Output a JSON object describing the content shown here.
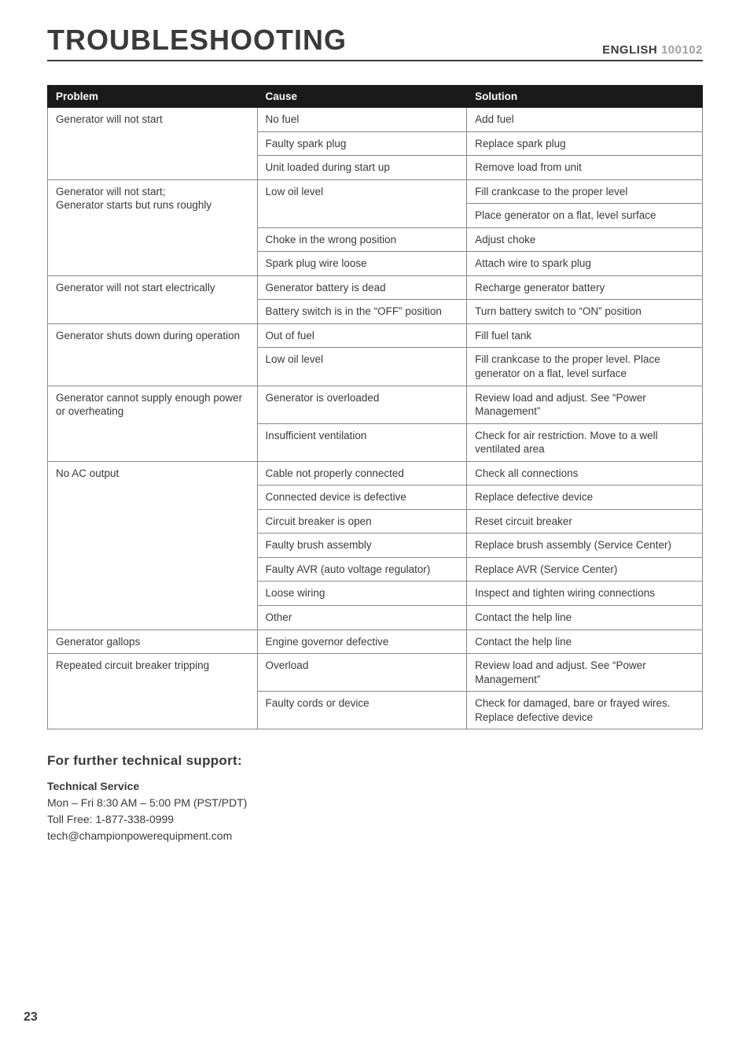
{
  "header": {
    "language": "ENGLISH",
    "model": "100102",
    "title": "TROUBLESHOOTING"
  },
  "table": {
    "columns": [
      "Problem",
      "Cause",
      "Solution"
    ],
    "column_widths_pct": [
      32,
      32,
      36
    ],
    "header_bg": "#1a1a1a",
    "header_fg": "#ffffff",
    "border_color": "#888888",
    "font_size_pt": 10,
    "rows": [
      {
        "problem": "Generator will not start",
        "problem_rowspan": 3,
        "cause": "No fuel",
        "solution": "Add fuel"
      },
      {
        "cause": "Faulty spark plug",
        "solution": "Replace spark plug"
      },
      {
        "cause": "Unit loaded during start up",
        "solution": "Remove load from unit"
      },
      {
        "problem": "Generator will not start;\nGenerator starts but runs roughly",
        "problem_rowspan": 4,
        "cause": "Low oil level",
        "cause_rowspan": 2,
        "solution": "Fill crankcase to the proper level"
      },
      {
        "solution": "Place generator on a flat, level surface"
      },
      {
        "cause": "Choke in the wrong position",
        "solution": "Adjust choke"
      },
      {
        "cause": "Spark plug wire loose",
        "solution": "Attach wire to spark plug"
      },
      {
        "problem": "Generator will not start electrically",
        "problem_rowspan": 2,
        "cause": "Generator battery is dead",
        "solution": "Recharge generator battery"
      },
      {
        "cause": "Battery switch is in the “OFF” position",
        "solution": "Turn battery switch to “ON” position"
      },
      {
        "problem": "Generator shuts down during operation",
        "problem_rowspan": 2,
        "cause": "Out of fuel",
        "solution": "Fill fuel tank"
      },
      {
        "cause": "Low oil level",
        "solution": "Fill crankcase to the proper level. Place generator on a flat, level surface"
      },
      {
        "problem": "Generator cannot supply enough power or overheating",
        "problem_rowspan": 2,
        "cause": "Generator is overloaded",
        "solution": "Review load and adjust. See “Power Management”"
      },
      {
        "cause": "Insufficient ventilation",
        "solution": "Check for air restriction. Move to a well ventilated area"
      },
      {
        "problem": "No AC output",
        "problem_rowspan": 7,
        "cause": "Cable not properly connected",
        "solution": "Check all connections"
      },
      {
        "cause": "Connected device is defective",
        "solution": "Replace defective device"
      },
      {
        "cause": "Circuit breaker is open",
        "solution": "Reset circuit breaker"
      },
      {
        "cause": "Faulty brush assembly",
        "solution": "Replace brush assembly (Service Center)"
      },
      {
        "cause": "Faulty AVR (auto voltage regulator)",
        "solution": "Replace AVR (Service Center)"
      },
      {
        "cause": "Loose wiring",
        "solution": "Inspect and tighten wiring connections"
      },
      {
        "cause": "Other",
        "solution": "Contact the help line"
      },
      {
        "problem": "Generator gallops",
        "problem_rowspan": 1,
        "cause": "Engine governor defective",
        "solution": "Contact the help line"
      },
      {
        "problem": "Repeated circuit breaker tripping",
        "problem_rowspan": 2,
        "cause": "Overload",
        "solution": "Review load and adjust. See “Power Management”"
      },
      {
        "cause": "Faulty cords or device",
        "solution": "Check for damaged, bare or frayed wires. Replace defective device"
      }
    ]
  },
  "support": {
    "heading": "For further technical support:",
    "service_label": "Technical Service",
    "hours": "Mon – Fri 8:30 AM – 5:00 PM (PST/PDT)",
    "phone": "Toll Free: 1-877-338-0999",
    "email": "tech@championpowerequipment.com"
  },
  "page_number": "23",
  "colors": {
    "text": "#3a3a3a",
    "muted": "#a0a0a0",
    "background": "#ffffff"
  },
  "typography": {
    "title_fontsize_pt": 27,
    "header_fontsize_pt": 11,
    "body_fontsize_pt": 10.5,
    "support_heading_fontsize_pt": 13
  }
}
